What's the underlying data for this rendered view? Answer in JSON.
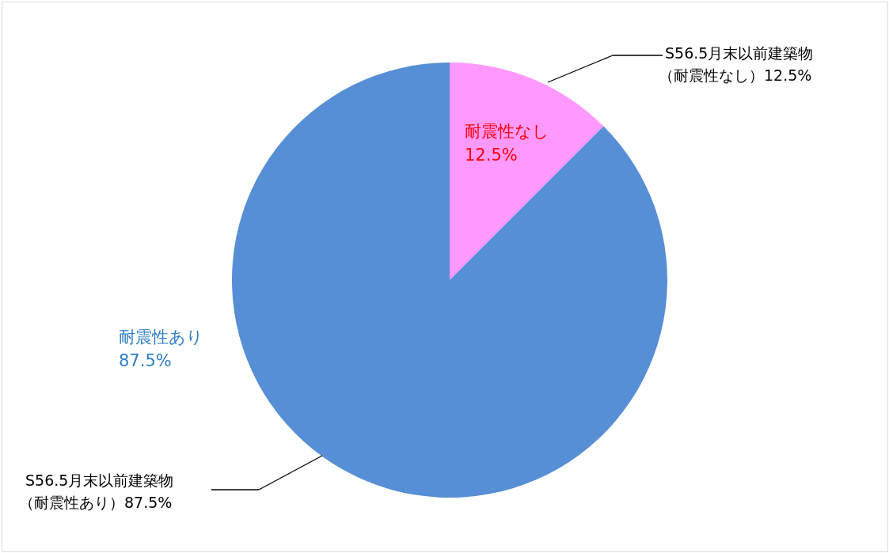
{
  "chart_data": {
    "type": "pie",
    "categories": [
      "耐震性なし",
      "耐震性あり"
    ],
    "values": [
      12.5,
      87.5
    ],
    "colors": [
      "#ff99ff",
      "#568fd6"
    ],
    "value_labels": [
      "12.5%",
      "87.5%"
    ],
    "annotations": [
      "S56.5月末以前建築物",
      "（耐震性なし）12.5%",
      "S56.5月末以前建築物",
      "（耐震性あり）87.5%"
    ]
  }
}
